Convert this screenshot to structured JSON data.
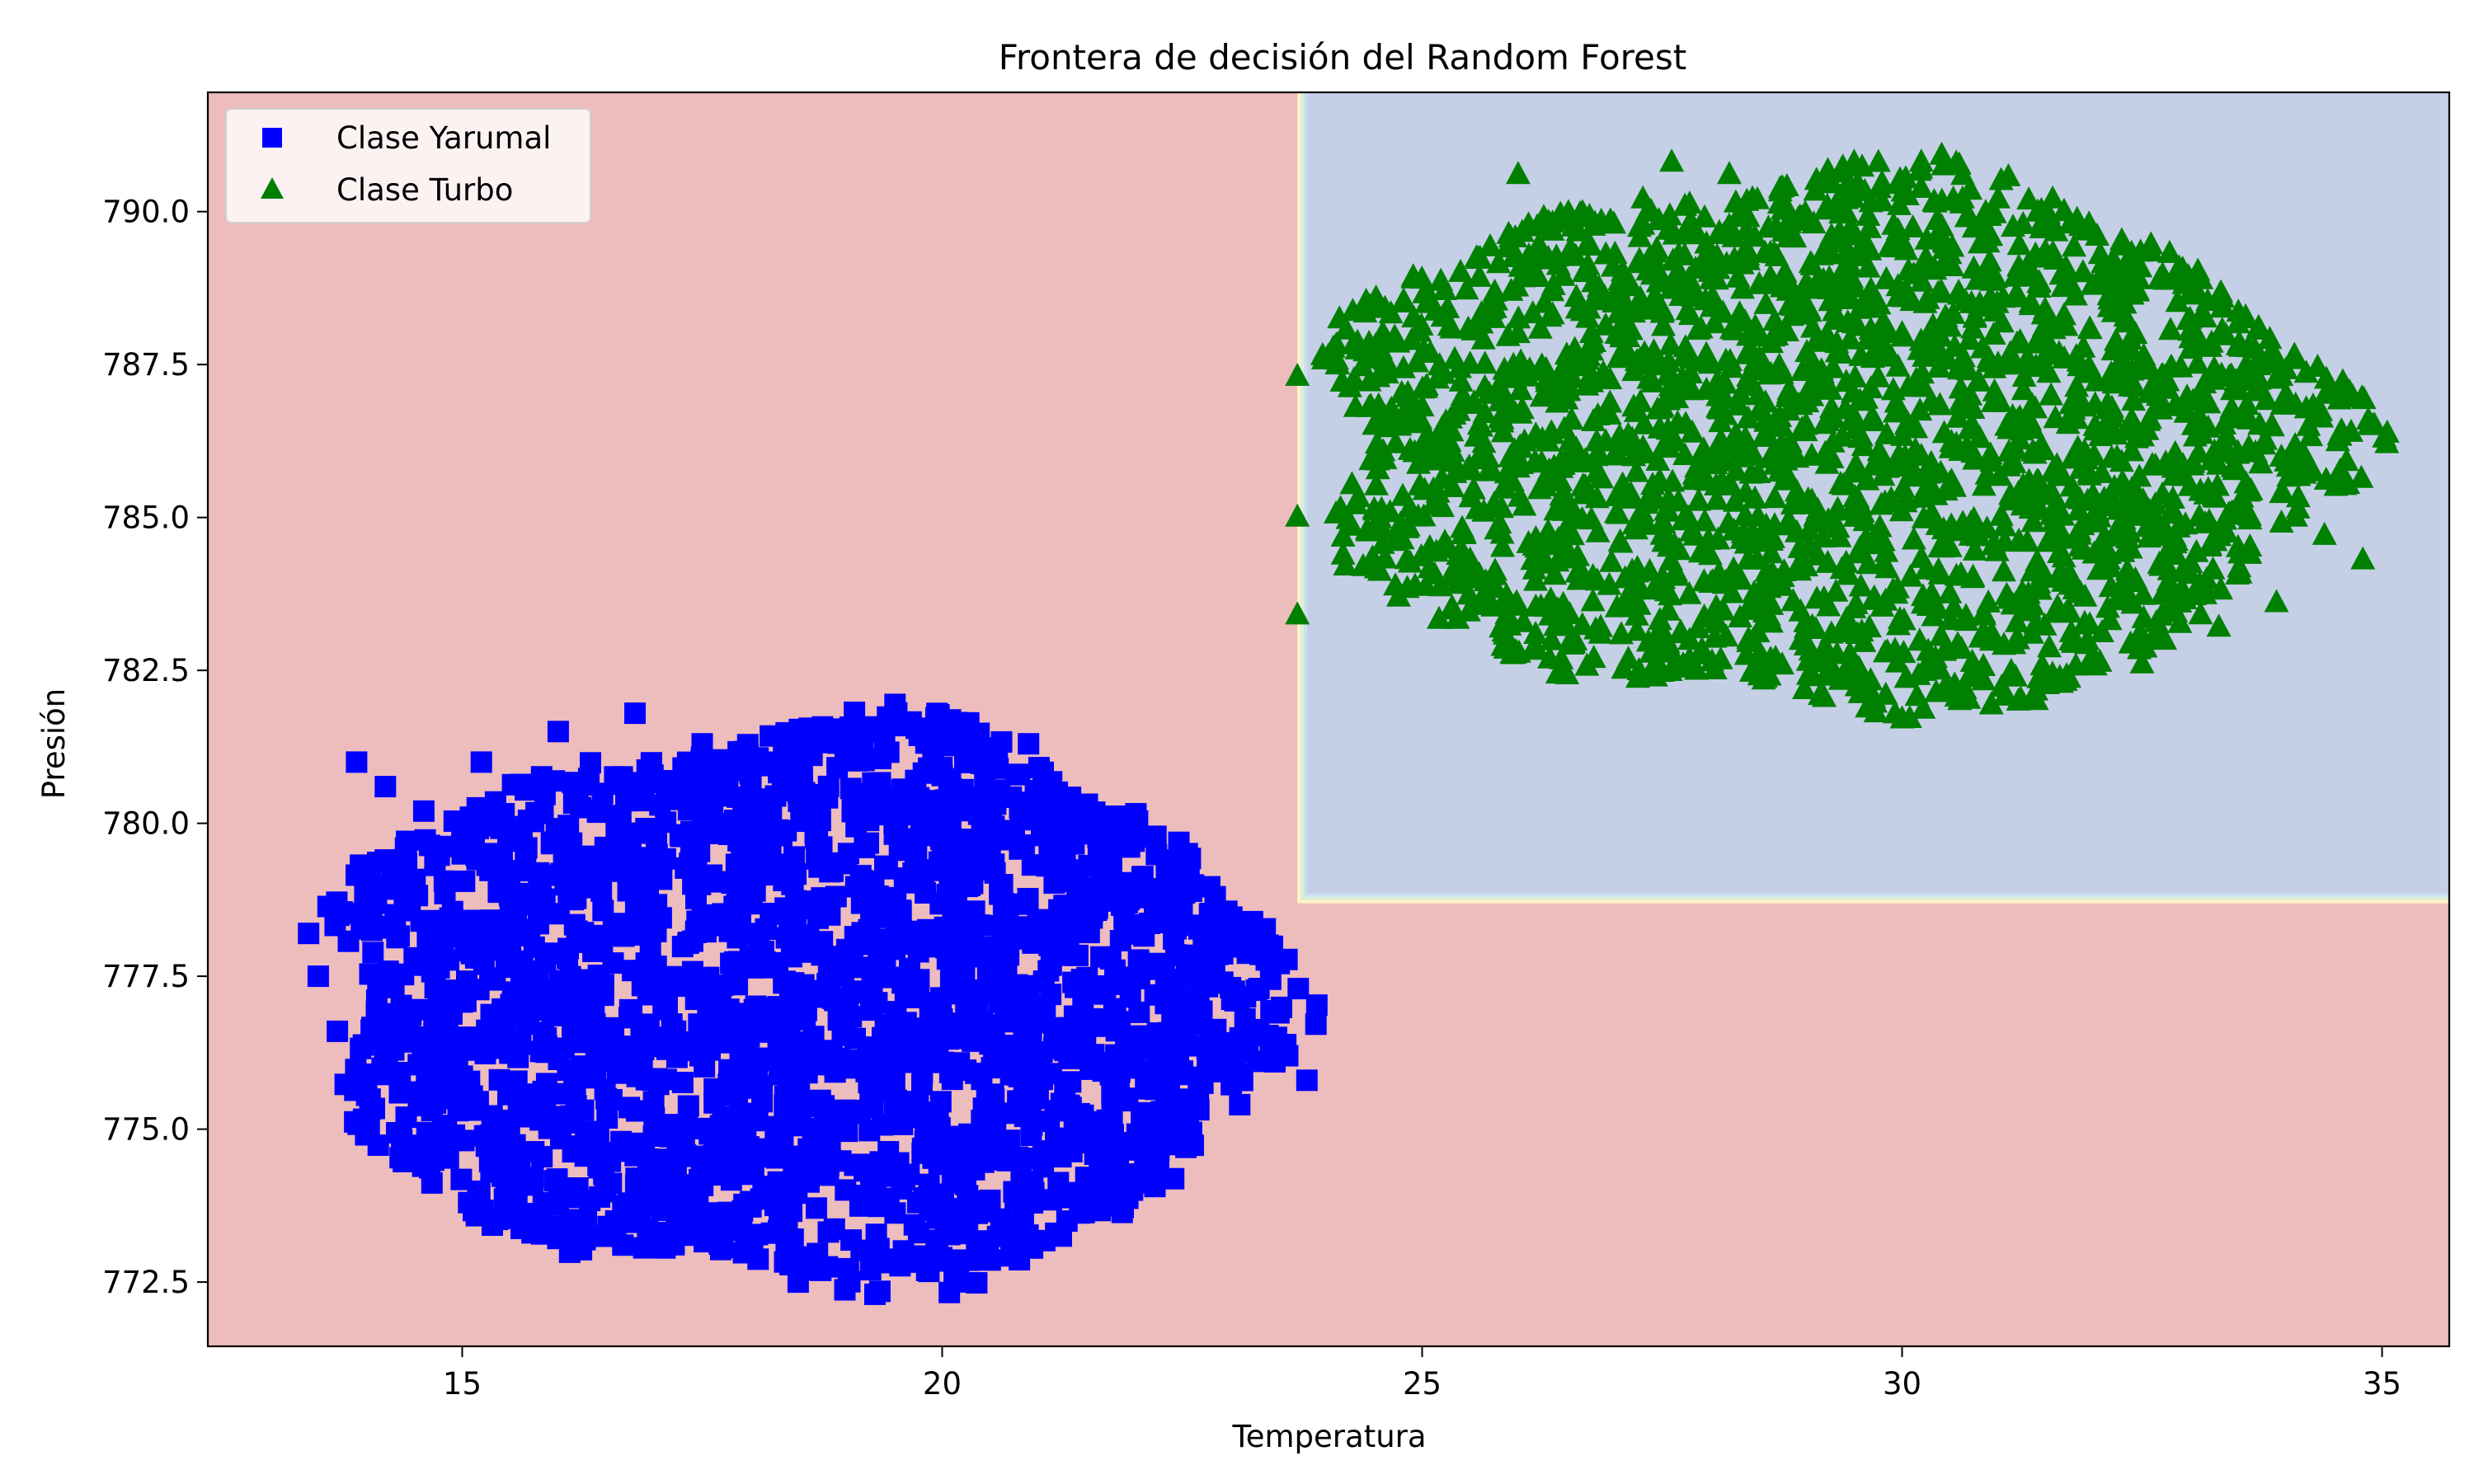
{
  "chart_data": {
    "type": "scatter",
    "title": "Frontera de decisión del Random Forest",
    "xlabel": "Temperatura",
    "ylabel": "Presión",
    "xlim": [
      12.35,
      35.7
    ],
    "ylim": [
      771.45,
      791.95
    ],
    "xticks": [
      15,
      20,
      25,
      30,
      35
    ],
    "yticks": [
      772.5,
      775.0,
      777.5,
      780.0,
      782.5,
      785.0,
      787.5,
      790.0
    ],
    "grid": false,
    "legend_position": "upper-left",
    "decision_regions": [
      {
        "class": "Clase Yarumal",
        "color": "#edbcbc",
        "rule": "outside x >= 23.75 and y >= 778.8"
      },
      {
        "class": "Clase Turbo",
        "color": "#c5d0e7",
        "x_range": [
          23.75,
          35.7
        ],
        "y_range": [
          778.8,
          791.95
        ]
      }
    ],
    "boundary_colors": [
      "#fff3c8",
      "#dcefd8",
      "#c8e2ee"
    ],
    "series": [
      {
        "name": "Clase Yarumal",
        "marker": "square",
        "color": "#0000ff",
        "cluster": {
          "x_min": 13.4,
          "x_max": 23.8,
          "y_min": 772.3,
          "y_max": 781.8,
          "center": [
            18.3,
            777.3
          ]
        },
        "points": [
          [
            13.4,
            778.2
          ],
          [
            13.9,
            781.0
          ],
          [
            14.2,
            779.4
          ],
          [
            14.6,
            780.2
          ],
          [
            15.2,
            781.0
          ],
          [
            16.0,
            781.5
          ],
          [
            16.8,
            781.8
          ],
          [
            17.5,
            781.3
          ],
          [
            18.6,
            781.5
          ],
          [
            19.4,
            781.4
          ],
          [
            20.2,
            781.4
          ],
          [
            20.9,
            781.3
          ],
          [
            21.3,
            780.0
          ],
          [
            21.9,
            779.7
          ],
          [
            22.5,
            778.6
          ],
          [
            22.9,
            778.2
          ],
          [
            23.3,
            777.3
          ],
          [
            23.6,
            776.2
          ],
          [
            23.8,
            775.8
          ],
          [
            23.1,
            775.4
          ],
          [
            22.3,
            774.8
          ],
          [
            21.7,
            774.2
          ],
          [
            20.8,
            773.9
          ],
          [
            20.1,
            773.7
          ],
          [
            19.7,
            772.9
          ],
          [
            19.3,
            772.3
          ],
          [
            18.5,
            772.5
          ],
          [
            18.0,
            773.0
          ],
          [
            17.5,
            773.6
          ],
          [
            16.6,
            773.5
          ],
          [
            15.8,
            773.5
          ],
          [
            15.3,
            774.3
          ],
          [
            14.8,
            775.0
          ],
          [
            14.6,
            776.2
          ],
          [
            13.7,
            776.6
          ],
          [
            13.5,
            777.5
          ],
          [
            14.5,
            777.8
          ],
          [
            15.5,
            778.7
          ],
          [
            16.5,
            779.5
          ],
          [
            17.5,
            780.2
          ],
          [
            18.5,
            780.5
          ],
          [
            19.5,
            780.0
          ],
          [
            20.5,
            779.5
          ],
          [
            21.5,
            778.5
          ],
          [
            22.5,
            777.0
          ],
          [
            16.0,
            777.0
          ],
          [
            17.0,
            776.5
          ],
          [
            18.0,
            777.8
          ],
          [
            19.0,
            776.0
          ],
          [
            20.0,
            776.8
          ],
          [
            21.0,
            775.5
          ],
          [
            22.0,
            776.0
          ],
          [
            15.0,
            779.5
          ],
          [
            16.5,
            775.5
          ],
          [
            18.5,
            774.5
          ],
          [
            20.5,
            774.5
          ],
          [
            17.5,
            778.5
          ],
          [
            19.5,
            778.0
          ],
          [
            14.2,
            780.6
          ],
          [
            21.8,
            777.6
          ]
        ]
      },
      {
        "name": "Clase Turbo",
        "marker": "triangle",
        "color": "#008000",
        "cluster": {
          "x_min": 23.7,
          "x_max": 34.8,
          "y_min": 781.7,
          "y_max": 790.8,
          "center": [
            29.0,
            786.3
          ]
        },
        "points": [
          [
            23.7,
            787.3
          ],
          [
            23.7,
            785.0
          ],
          [
            23.7,
            783.4
          ],
          [
            24.2,
            784.2
          ],
          [
            24.5,
            786.5
          ],
          [
            24.8,
            788.5
          ],
          [
            25.4,
            789.0
          ],
          [
            26.0,
            790.6
          ],
          [
            26.8,
            789.8
          ],
          [
            27.3,
            790.2
          ],
          [
            27.6,
            790.8
          ],
          [
            28.2,
            790.6
          ],
          [
            28.8,
            790.4
          ],
          [
            29.5,
            790.8
          ],
          [
            30.2,
            790.8
          ],
          [
            31.0,
            790.2
          ],
          [
            31.6,
            789.2
          ],
          [
            32.2,
            789.2
          ],
          [
            32.9,
            788.9
          ],
          [
            33.5,
            787.8
          ],
          [
            34.0,
            787.0
          ],
          [
            34.0,
            785.9
          ],
          [
            34.1,
            785.0
          ],
          [
            34.4,
            784.7
          ],
          [
            34.8,
            784.3
          ],
          [
            33.9,
            783.6
          ],
          [
            33.3,
            783.2
          ],
          [
            32.5,
            782.6
          ],
          [
            31.4,
            782.0
          ],
          [
            30.6,
            782.0
          ],
          [
            30.0,
            781.7
          ],
          [
            29.2,
            782.4
          ],
          [
            28.4,
            783.0
          ],
          [
            27.5,
            784.0
          ],
          [
            26.5,
            784.5
          ],
          [
            25.5,
            784.3
          ],
          [
            24.7,
            784.6
          ],
          [
            25.0,
            786.8
          ],
          [
            26.0,
            788.0
          ],
          [
            27.0,
            788.5
          ],
          [
            28.0,
            787.5
          ],
          [
            29.0,
            786.5
          ],
          [
            30.0,
            788.0
          ],
          [
            31.0,
            787.5
          ],
          [
            32.0,
            786.0
          ],
          [
            33.0,
            785.5
          ],
          [
            27.0,
            786.0
          ],
          [
            28.5,
            785.0
          ],
          [
            30.5,
            784.5
          ],
          [
            31.5,
            784.0
          ],
          [
            29.5,
            783.5
          ],
          [
            26.0,
            785.8
          ],
          [
            32.5,
            787.5
          ],
          [
            28.0,
            789.0
          ],
          [
            30.0,
            789.5
          ],
          [
            25.5,
            787.5
          ],
          [
            33.5,
            784.5
          ],
          [
            27.5,
            786.8
          ],
          [
            29.0,
            788.3
          ],
          [
            31.8,
            785.3
          ]
        ]
      }
    ]
  }
}
